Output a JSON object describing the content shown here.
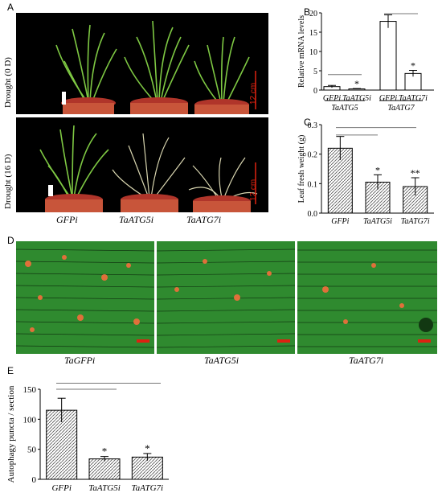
{
  "panels": {
    "a": "A",
    "b": "B",
    "c": "C",
    "d": "D",
    "e": "E"
  },
  "photos": {
    "top_label": "Drought (0 D)",
    "bottom_label": "Drought (16 D)",
    "scale_top": "12 cm",
    "scale_bottom": "12 cm",
    "genotypes": [
      "GFPi",
      "TaATG5i",
      "TaATG7i"
    ]
  },
  "micrographs": {
    "labels": [
      "TaGFPi",
      "TaATG5i",
      "TaATG7i"
    ]
  },
  "colors": {
    "plant": "#7ec843",
    "pot": "#c8553a",
    "soil": "#b0352a",
    "leaf_bg": "#2f8a2f",
    "puncta": "#e0703a"
  },
  "chart_data": [
    {
      "id": "B",
      "type": "bar",
      "ylabel": "Relative mRNA levels",
      "ylim": [
        0,
        20
      ],
      "yticks": [
        0,
        5,
        10,
        15,
        20
      ],
      "categories": [
        "GFPi",
        "TaATG5i",
        "GFPi",
        "TaATG7i"
      ],
      "groups": [
        "TaATG5",
        "TaATG7"
      ],
      "values": [
        0.9,
        0.3,
        17.8,
        4.3
      ],
      "errors": [
        0.3,
        0.1,
        1.7,
        0.8
      ],
      "annotations": [
        "",
        "*",
        "",
        "*"
      ]
    },
    {
      "id": "C",
      "type": "bar",
      "ylabel": "Leaf fresh weight (g)",
      "ylim": [
        0,
        0.3
      ],
      "yticks": [
        0.0,
        0.1,
        0.2,
        0.3
      ],
      "categories": [
        "GFPi",
        "TaATG5i",
        "TaATG7i"
      ],
      "values": [
        0.22,
        0.105,
        0.09
      ],
      "errors": [
        0.04,
        0.025,
        0.03
      ],
      "annotations": [
        "",
        "*",
        "**"
      ]
    },
    {
      "id": "E",
      "type": "bar",
      "ylabel": "Autophagy puncta / section",
      "ylim": [
        0,
        150
      ],
      "yticks": [
        0,
        50,
        100,
        150
      ],
      "categories": [
        "GFPi",
        "TaATG5i",
        "TaATG7i"
      ],
      "values": [
        115,
        34,
        37
      ],
      "errors": [
        20,
        4,
        6
      ],
      "annotations": [
        "",
        "*",
        "*"
      ]
    }
  ]
}
